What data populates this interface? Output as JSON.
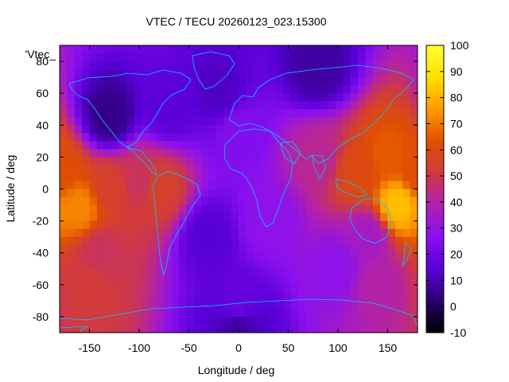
{
  "chart_data": {
    "type": "heatmap",
    "title": "VTEC / TECU 20260123_023.15300",
    "xlabel": "Longitude / deg",
    "ylabel": "Latitude / deg",
    "key_label": "'Vtec_",
    "xlim": [
      -180,
      180
    ],
    "ylim": [
      -90,
      90
    ],
    "x_ticks": [
      -150,
      -100,
      -50,
      0,
      50,
      100,
      150
    ],
    "y_ticks": [
      -80,
      -60,
      -40,
      -20,
      0,
      20,
      40,
      60,
      80
    ],
    "colorbar": {
      "range": [
        -10,
        100
      ],
      "ticks": [
        -10,
        0,
        10,
        20,
        30,
        40,
        50,
        60,
        70,
        80,
        90,
        100
      ],
      "palette": [
        "#000000",
        "#2a0070",
        "#5a00d8",
        "#8a10f0",
        "#b020b0",
        "#d03a40",
        "#e05000",
        "#ff9a00",
        "#ffe000",
        "#ffff30"
      ]
    },
    "grid": false,
    "legend": "none",
    "field_anchors": [
      {
        "lon": -180,
        "lat": 10,
        "vtec": 62
      },
      {
        "lon": -160,
        "lat": -12,
        "vtec": 72
      },
      {
        "lon": -130,
        "lat": 0,
        "vtec": 55
      },
      {
        "lon": -100,
        "lat": 5,
        "vtec": 48
      },
      {
        "lon": -80,
        "lat": 0,
        "vtec": 55
      },
      {
        "lon": -140,
        "lat": -40,
        "vtec": 48
      },
      {
        "lon": -150,
        "lat": -60,
        "vtec": 52
      },
      {
        "lon": -30,
        "lat": -30,
        "vtec": 14
      },
      {
        "lon": -130,
        "lat": 45,
        "vtec": 5
      },
      {
        "lon": -70,
        "lat": 50,
        "vtec": 15
      },
      {
        "lon": -20,
        "lat": 60,
        "vtec": 12
      },
      {
        "lon": 80,
        "lat": 75,
        "vtec": 8
      },
      {
        "lon": 0,
        "lat": 35,
        "vtec": 25
      },
      {
        "lon": 80,
        "lat": 20,
        "vtec": 42
      },
      {
        "lon": 120,
        "lat": 10,
        "vtec": 60
      },
      {
        "lon": 150,
        "lat": 20,
        "vtec": 65
      },
      {
        "lon": 160,
        "lat": -10,
        "vtec": 82
      },
      {
        "lon": 130,
        "lat": -30,
        "vtec": 35
      },
      {
        "lon": 140,
        "lat": -60,
        "vtec": 40
      },
      {
        "lon": 100,
        "lat": -50,
        "vtec": 28
      },
      {
        "lon": 30,
        "lat": -20,
        "vtec": 28
      },
      {
        "lon": 0,
        "lat": -75,
        "vtec": 18
      },
      {
        "lon": 0,
        "lat": -85,
        "vtec": 8
      }
    ]
  }
}
